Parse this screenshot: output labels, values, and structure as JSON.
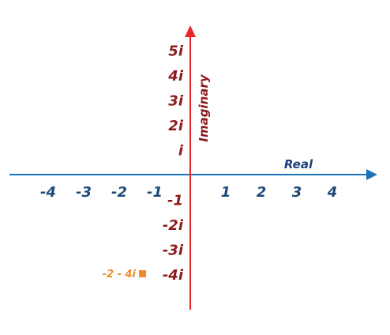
{
  "chart_data": {
    "type": "scatter",
    "xlabel": "Real",
    "ylabel": "Imaginary",
    "xlim": [
      -4.8,
      5.2
    ],
    "ylim": [
      -5.3,
      6.1
    ],
    "x_ticks": [
      {
        "value": -4,
        "label": "-4"
      },
      {
        "value": -3,
        "label": "-3"
      },
      {
        "value": -2,
        "label": "-2"
      },
      {
        "value": -1,
        "label": "-1"
      },
      {
        "value": 1,
        "label": "1"
      },
      {
        "value": 2,
        "label": "2"
      },
      {
        "value": 3,
        "label": "3"
      },
      {
        "value": 4,
        "label": "4"
      }
    ],
    "y_ticks": [
      {
        "value": 5,
        "label": "5i"
      },
      {
        "value": 4,
        "label": "4i"
      },
      {
        "value": 3,
        "label": "3i"
      },
      {
        "value": 2,
        "label": "2i"
      },
      {
        "value": 1,
        "label": "i"
      },
      {
        "value": -1,
        "label": "-1"
      },
      {
        "value": -2,
        "label": "-2i"
      },
      {
        "value": -3,
        "label": "-3i"
      },
      {
        "value": -4,
        "label": "-4i"
      }
    ],
    "points": [
      {
        "x": -2,
        "y": -4,
        "label": "-2 - 4i"
      }
    ],
    "grid": false,
    "colors": {
      "real_axis": "#1a73b8",
      "imag_axis": "#e8262a",
      "x_tick_text": "#1e4a78",
      "y_tick_text": "#8b1a1a",
      "real_label": "#1e3f78",
      "imag_label": "#8b1a1a",
      "point": "#f08a2c"
    }
  }
}
